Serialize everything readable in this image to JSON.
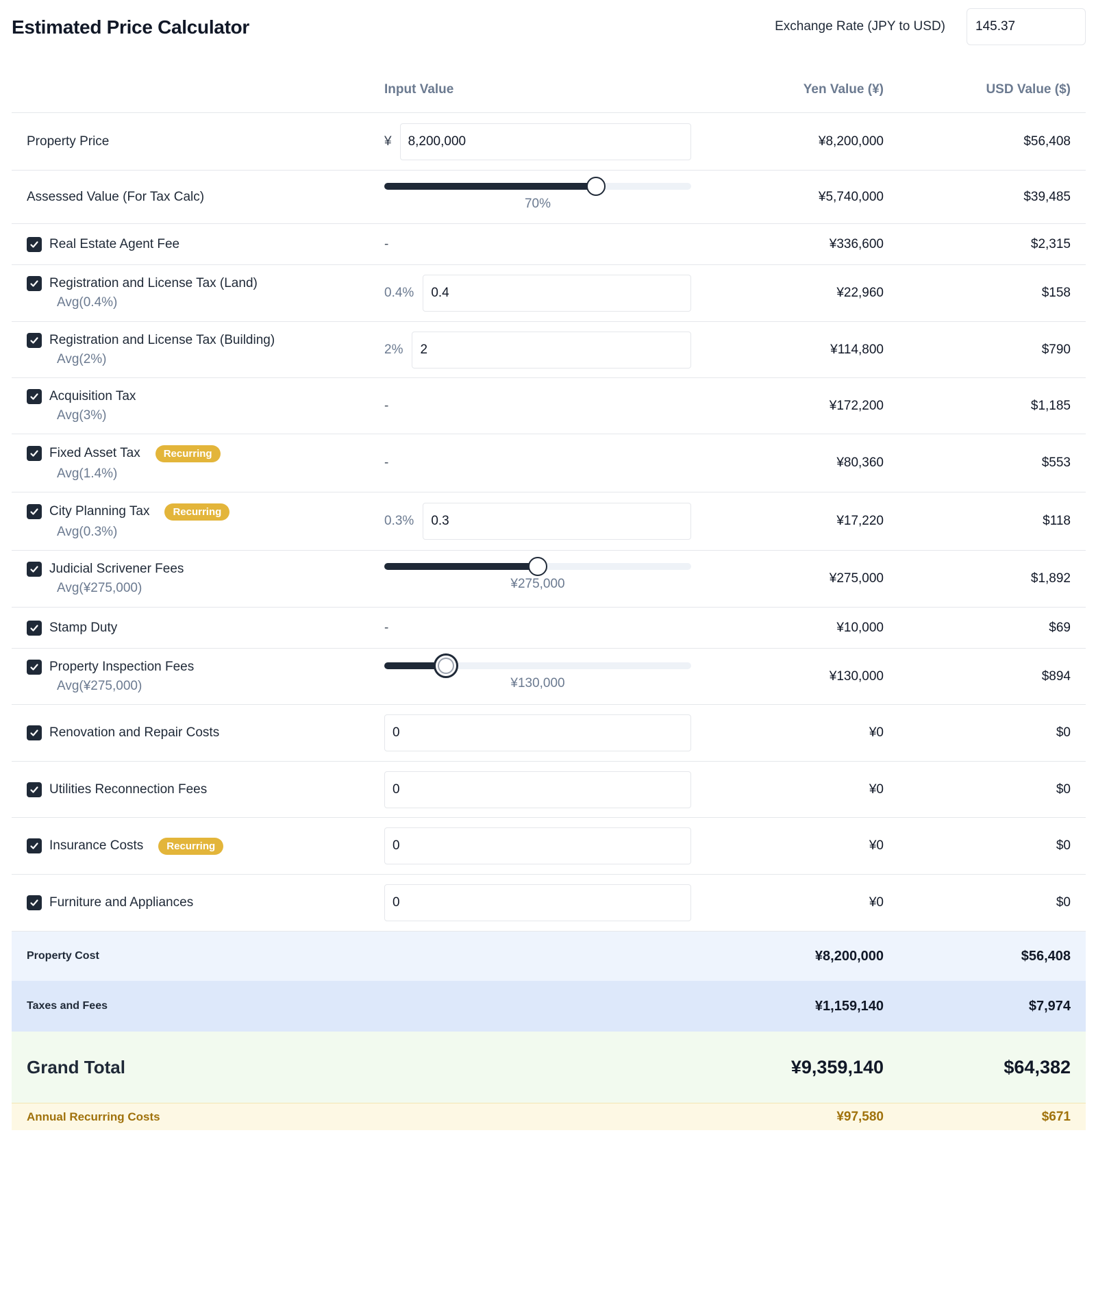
{
  "header": {
    "title": "Estimated Price Calculator",
    "exchange_rate_label": "Exchange Rate (JPY to USD)",
    "exchange_rate_value": "145.37"
  },
  "columns": {
    "input": "Input Value",
    "yen": "Yen Value (¥)",
    "usd": "USD Value ($)"
  },
  "rows": [
    {
      "label": "Property Price",
      "prefix": "¥",
      "input": "8,200,000",
      "yen": "¥8,200,000",
      "usd": "$56,408"
    },
    {
      "label": "Assessed Value (For Tax Calc)",
      "slider_value": "70%",
      "slider_fraction": 0.69,
      "yen": "¥5,740,000",
      "usd": "$39,485"
    },
    {
      "label": "Real Estate Agent Fee",
      "checked": true,
      "input": "-",
      "yen": "¥336,600",
      "usd": "$2,315"
    },
    {
      "label": "Registration and License Tax (Land)",
      "checked": true,
      "avg": "Avg(0.4%)",
      "prefix": "0.4%",
      "input": "0.4",
      "yen": "¥22,960",
      "usd": "$158"
    },
    {
      "label": "Registration and License Tax (Building)",
      "checked": true,
      "avg": "Avg(2%)",
      "prefix": "2%",
      "input": "2",
      "yen": "¥114,800",
      "usd": "$790"
    },
    {
      "label": "Acquisition Tax",
      "checked": true,
      "avg": "Avg(3%)",
      "input": "-",
      "yen": "¥172,200",
      "usd": "$1,185"
    },
    {
      "label": "Fixed Asset Tax",
      "checked": true,
      "badge": "Recurring",
      "avg": "Avg(1.4%)",
      "input": "-",
      "yen": "¥80,360",
      "usd": "$553"
    },
    {
      "label": "City Planning Tax",
      "checked": true,
      "badge": "Recurring",
      "avg": "Avg(0.3%)",
      "prefix": "0.3%",
      "input": "0.3",
      "yen": "¥17,220",
      "usd": "$118"
    },
    {
      "label": "Judicial Scrivener Fees",
      "checked": true,
      "avg": "Avg(¥275,000)",
      "slider_value": "¥275,000",
      "slider_fraction": 0.5,
      "yen": "¥275,000",
      "usd": "$1,892"
    },
    {
      "label": "Stamp Duty",
      "checked": true,
      "input": "-",
      "yen": "¥10,000",
      "usd": "$69"
    },
    {
      "label": "Property Inspection Fees",
      "checked": true,
      "avg": "Avg(¥275,000)",
      "slider_value": "¥130,000",
      "slider_fraction": 0.2,
      "yen": "¥130,000",
      "usd": "$894"
    },
    {
      "label": "Renovation and Repair Costs",
      "checked": true,
      "input": "0",
      "yen": "¥0",
      "usd": "$0"
    },
    {
      "label": "Utilities Reconnection Fees",
      "checked": true,
      "input": "0",
      "yen": "¥0",
      "usd": "$0"
    },
    {
      "label": "Insurance Costs",
      "checked": true,
      "badge": "Recurring",
      "input": "0",
      "yen": "¥0",
      "usd": "$0"
    },
    {
      "label": "Furniture and Appliances",
      "checked": true,
      "input": "0",
      "yen": "¥0",
      "usd": "$0"
    }
  ],
  "summary": {
    "property_cost": {
      "label": "Property Cost",
      "yen": "¥8,200,000",
      "usd": "$56,408"
    },
    "taxes_fees": {
      "label": "Taxes and Fees",
      "yen": "¥1,159,140",
      "usd": "$7,974"
    },
    "grand_total": {
      "label": "Grand Total",
      "yen": "¥9,359,140",
      "usd": "$64,382"
    },
    "annual_recurring": {
      "label": "Annual Recurring Costs",
      "yen": "¥97,580",
      "usd": "$671"
    }
  },
  "colors": {
    "checkbox": "#1f2937",
    "badge": "#e3b53a",
    "property_cost_bg": "#eef4fd",
    "taxes_fees_bg": "#dde8fa",
    "grand_total_bg": "#f2faef",
    "annual_bg": "#fdf8e4"
  }
}
